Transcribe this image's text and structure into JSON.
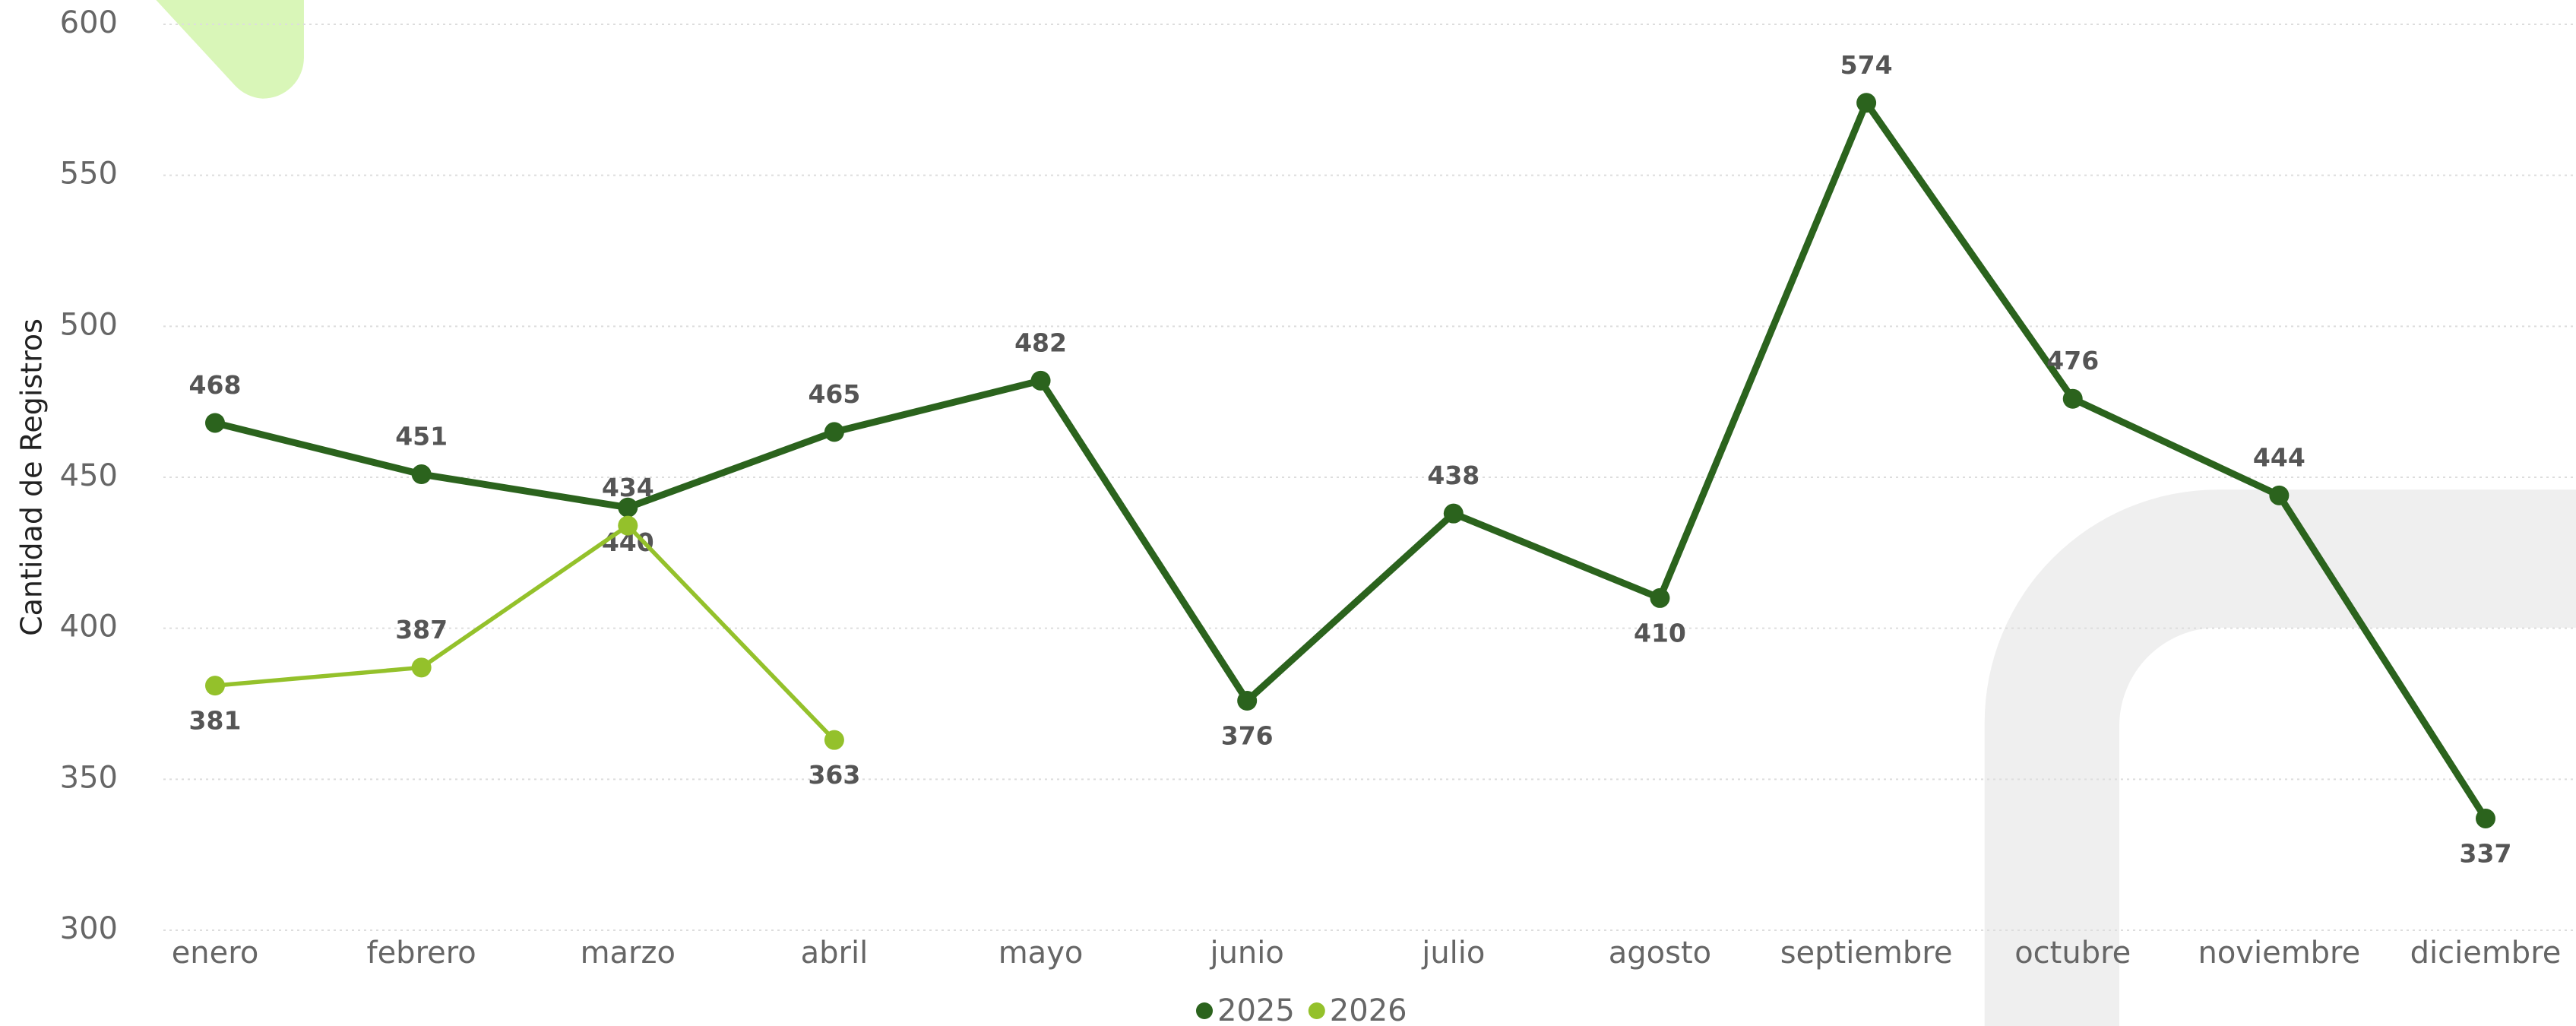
{
  "chart_data": {
    "type": "line",
    "y_label": "Cantidad de Registros",
    "categories": [
      "enero",
      "febrero",
      "marzo",
      "abril",
      "mayo",
      "junio",
      "julio",
      "agosto",
      "septiembre",
      "octubre",
      "noviembre",
      "diciembre"
    ],
    "series": [
      {
        "name": "2025",
        "color": "#2b631d",
        "values": [
          468,
          451,
          440,
          465,
          482,
          376,
          438,
          410,
          574,
          476,
          444,
          337
        ]
      },
      {
        "name": "2026",
        "color": "#94c12b",
        "values": [
          381,
          387,
          434,
          363,
          null,
          null,
          null,
          null,
          null,
          null,
          null,
          null
        ]
      }
    ],
    "ylim": [
      300,
      600
    ],
    "yticks": [
      300,
      350,
      400,
      450,
      500,
      550,
      600
    ],
    "grid": true
  }
}
